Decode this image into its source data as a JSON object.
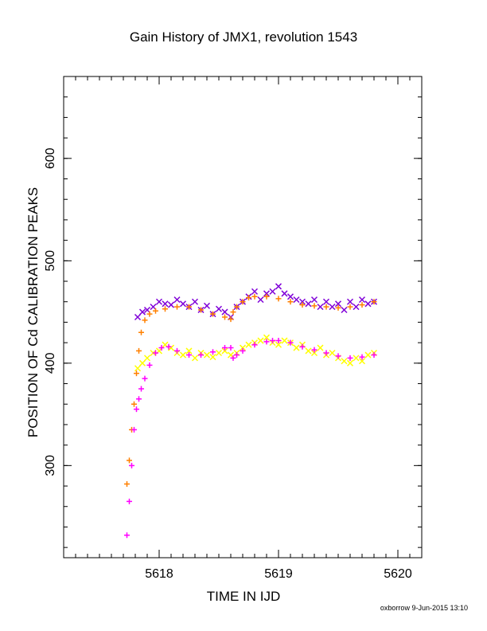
{
  "chart_data": {
    "type": "scatter",
    "title": "Gain History of JMX1, revolution 1543",
    "xlabel": "TIME IN IJD",
    "ylabel": "POSITION OF Cd CALIBRATION PEAKS",
    "xlim": [
      5617.2,
      5620.2
    ],
    "ylim": [
      210,
      680
    ],
    "xticks": [
      5618,
      5619,
      5620
    ],
    "xtick_labels": [
      "5618",
      "5619",
      "5620"
    ],
    "yticks": [
      300,
      400,
      500,
      600
    ],
    "ytick_labels": [
      "300",
      "400",
      "500",
      "600"
    ],
    "grid": false,
    "legend": "none",
    "series": [
      {
        "marker": "x",
        "color": "#8000d8",
        "x": [
          5617.82,
          5617.86,
          5617.9,
          5617.95,
          5618.0,
          5618.05,
          5618.1,
          5618.15,
          5618.2,
          5618.25,
          5618.3,
          5618.35,
          5618.4,
          5618.45,
          5618.5,
          5618.55,
          5618.6,
          5618.65,
          5618.7,
          5618.75,
          5618.8,
          5618.85,
          5618.9,
          5618.95,
          5619.0,
          5619.05,
          5619.1,
          5619.15,
          5619.2,
          5619.25,
          5619.3,
          5619.35,
          5619.4,
          5619.45,
          5619.5,
          5619.55,
          5619.6,
          5619.65,
          5619.7,
          5619.75,
          5619.8
        ],
        "y": [
          445,
          450,
          452,
          455,
          460,
          458,
          457,
          462,
          458,
          455,
          460,
          452,
          456,
          448,
          453,
          450,
          445,
          455,
          460,
          465,
          470,
          462,
          468,
          470,
          475,
          468,
          465,
          462,
          460,
          458,
          462,
          455,
          460,
          455,
          458,
          452,
          460,
          455,
          462,
          458,
          460
        ]
      },
      {
        "marker": "x",
        "color": "#ffff00",
        "x": [
          5617.82,
          5617.86,
          5617.9,
          5617.95,
          5618.0,
          5618.05,
          5618.1,
          5618.15,
          5618.2,
          5618.25,
          5618.3,
          5618.35,
          5618.4,
          5618.45,
          5618.5,
          5618.55,
          5618.6,
          5618.65,
          5618.7,
          5618.75,
          5618.8,
          5618.85,
          5618.9,
          5618.95,
          5619.0,
          5619.05,
          5619.1,
          5619.15,
          5619.2,
          5619.25,
          5619.3,
          5619.35,
          5619.4,
          5619.45,
          5619.5,
          5619.55,
          5619.6,
          5619.65,
          5619.7,
          5619.75,
          5619.8
        ],
        "y": [
          395,
          400,
          405,
          410,
          412,
          418,
          415,
          410,
          408,
          412,
          405,
          410,
          408,
          406,
          410,
          412,
          408,
          410,
          415,
          418,
          420,
          422,
          425,
          420,
          418,
          422,
          420,
          415,
          418,
          412,
          410,
          415,
          408,
          410,
          405,
          402,
          400,
          405,
          402,
          408,
          410
        ]
      },
      {
        "marker": "+",
        "color": "#ff8000",
        "x": [
          5617.73,
          5617.75,
          5617.77,
          5617.79,
          5617.81,
          5617.83,
          5617.85,
          5617.88,
          5617.92,
          5617.97,
          5618.05,
          5618.15,
          5618.25,
          5618.35,
          5618.45,
          5618.55,
          5618.6,
          5618.62,
          5618.65,
          5618.7,
          5618.75,
          5618.8,
          5618.9,
          5619.0,
          5619.1,
          5619.2,
          5619.3,
          5619.4,
          5619.5,
          5619.6,
          5619.7,
          5619.8
        ],
        "y": [
          282,
          305,
          335,
          360,
          390,
          412,
          430,
          442,
          448,
          451,
          453,
          455,
          455,
          452,
          448,
          445,
          443,
          450,
          455,
          460,
          464,
          465,
          465,
          463,
          460,
          457,
          456,
          455,
          454,
          455,
          457,
          460
        ]
      },
      {
        "marker": "+",
        "color": "#ff00ff",
        "x": [
          5617.73,
          5617.75,
          5617.77,
          5617.79,
          5617.81,
          5617.83,
          5617.85,
          5617.88,
          5617.92,
          5617.97,
          5618.02,
          5618.08,
          5618.15,
          5618.25,
          5618.35,
          5618.45,
          5618.55,
          5618.6,
          5618.62,
          5618.65,
          5618.7,
          5618.8,
          5618.9,
          5618.95,
          5619.0,
          5619.1,
          5619.2,
          5619.3,
          5619.4,
          5619.5,
          5619.6,
          5619.7,
          5619.8
        ],
        "y": [
          232,
          265,
          300,
          335,
          355,
          365,
          375,
          385,
          398,
          410,
          415,
          416,
          412,
          408,
          408,
          411,
          415,
          415,
          405,
          408,
          412,
          418,
          421,
          422,
          422,
          420,
          416,
          413,
          410,
          407,
          405,
          406,
          408
        ]
      }
    ]
  },
  "footer": "oxborrow  9-Jun-2015 13:10"
}
